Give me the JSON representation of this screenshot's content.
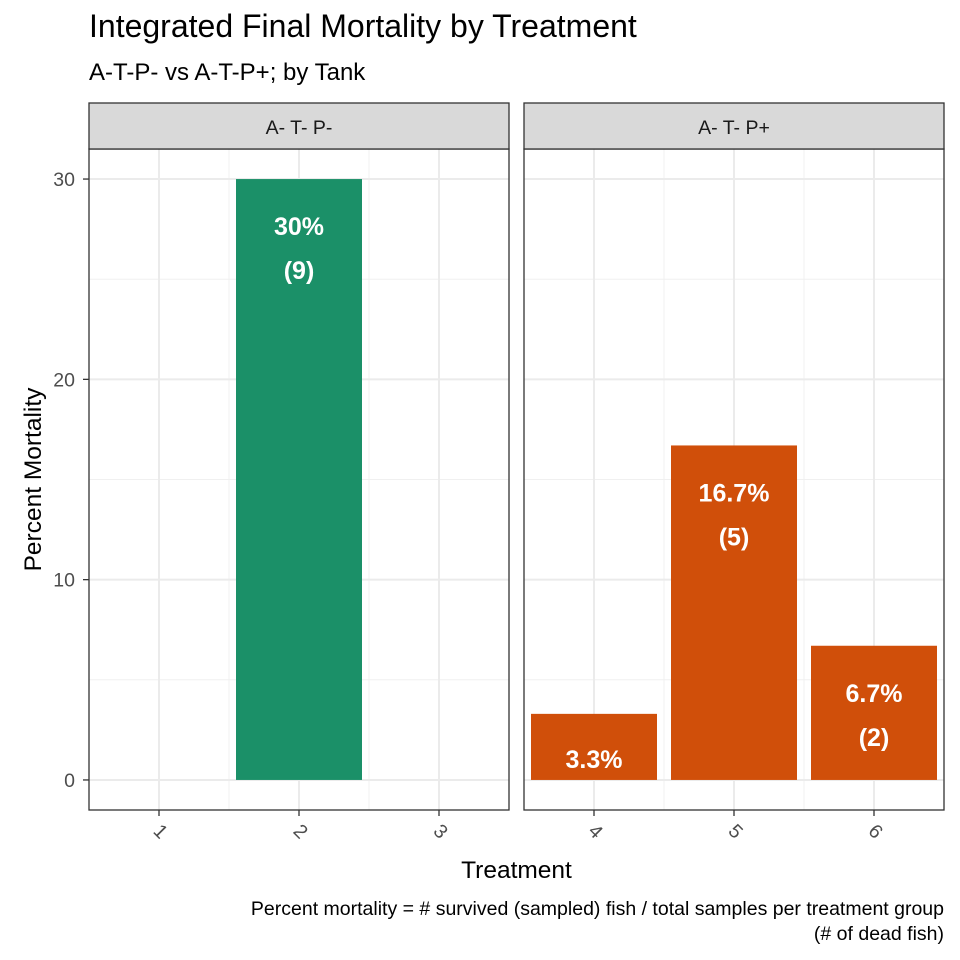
{
  "chart_data": {
    "type": "bar",
    "title": "Integrated Final Mortality by Treatment",
    "subtitle": "A-T-P- vs A-T-P+; by Tank",
    "xlabel": "Treatment",
    "ylabel": "Percent Mortality",
    "caption_lines": [
      "Percent mortality = # survived (sampled) fish / total samples per treatment group",
      "(# of dead fish)"
    ],
    "ylim": [
      -1.5,
      31.5
    ],
    "yticks": [
      0,
      10,
      20,
      30
    ],
    "grid": true,
    "legend": "none",
    "facets": [
      {
        "label": "A- T- P-",
        "categories": [
          "1",
          "2",
          "3"
        ],
        "color": "#1B9068",
        "bars": [
          {
            "category": "2",
            "value": 30,
            "label_pct": "30%",
            "label_count": "(9)"
          }
        ]
      },
      {
        "label": "A- T- P+",
        "categories": [
          "4",
          "5",
          "6"
        ],
        "color": "#D04F0A",
        "bars": [
          {
            "category": "4",
            "value": 3.3,
            "label_pct": "3.3%",
            "label_count": ""
          },
          {
            "category": "5",
            "value": 16.7,
            "label_pct": "16.7%",
            "label_count": "(5)"
          },
          {
            "category": "6",
            "value": 6.7,
            "label_pct": "6.7%",
            "label_count": "(2)"
          }
        ]
      }
    ]
  }
}
